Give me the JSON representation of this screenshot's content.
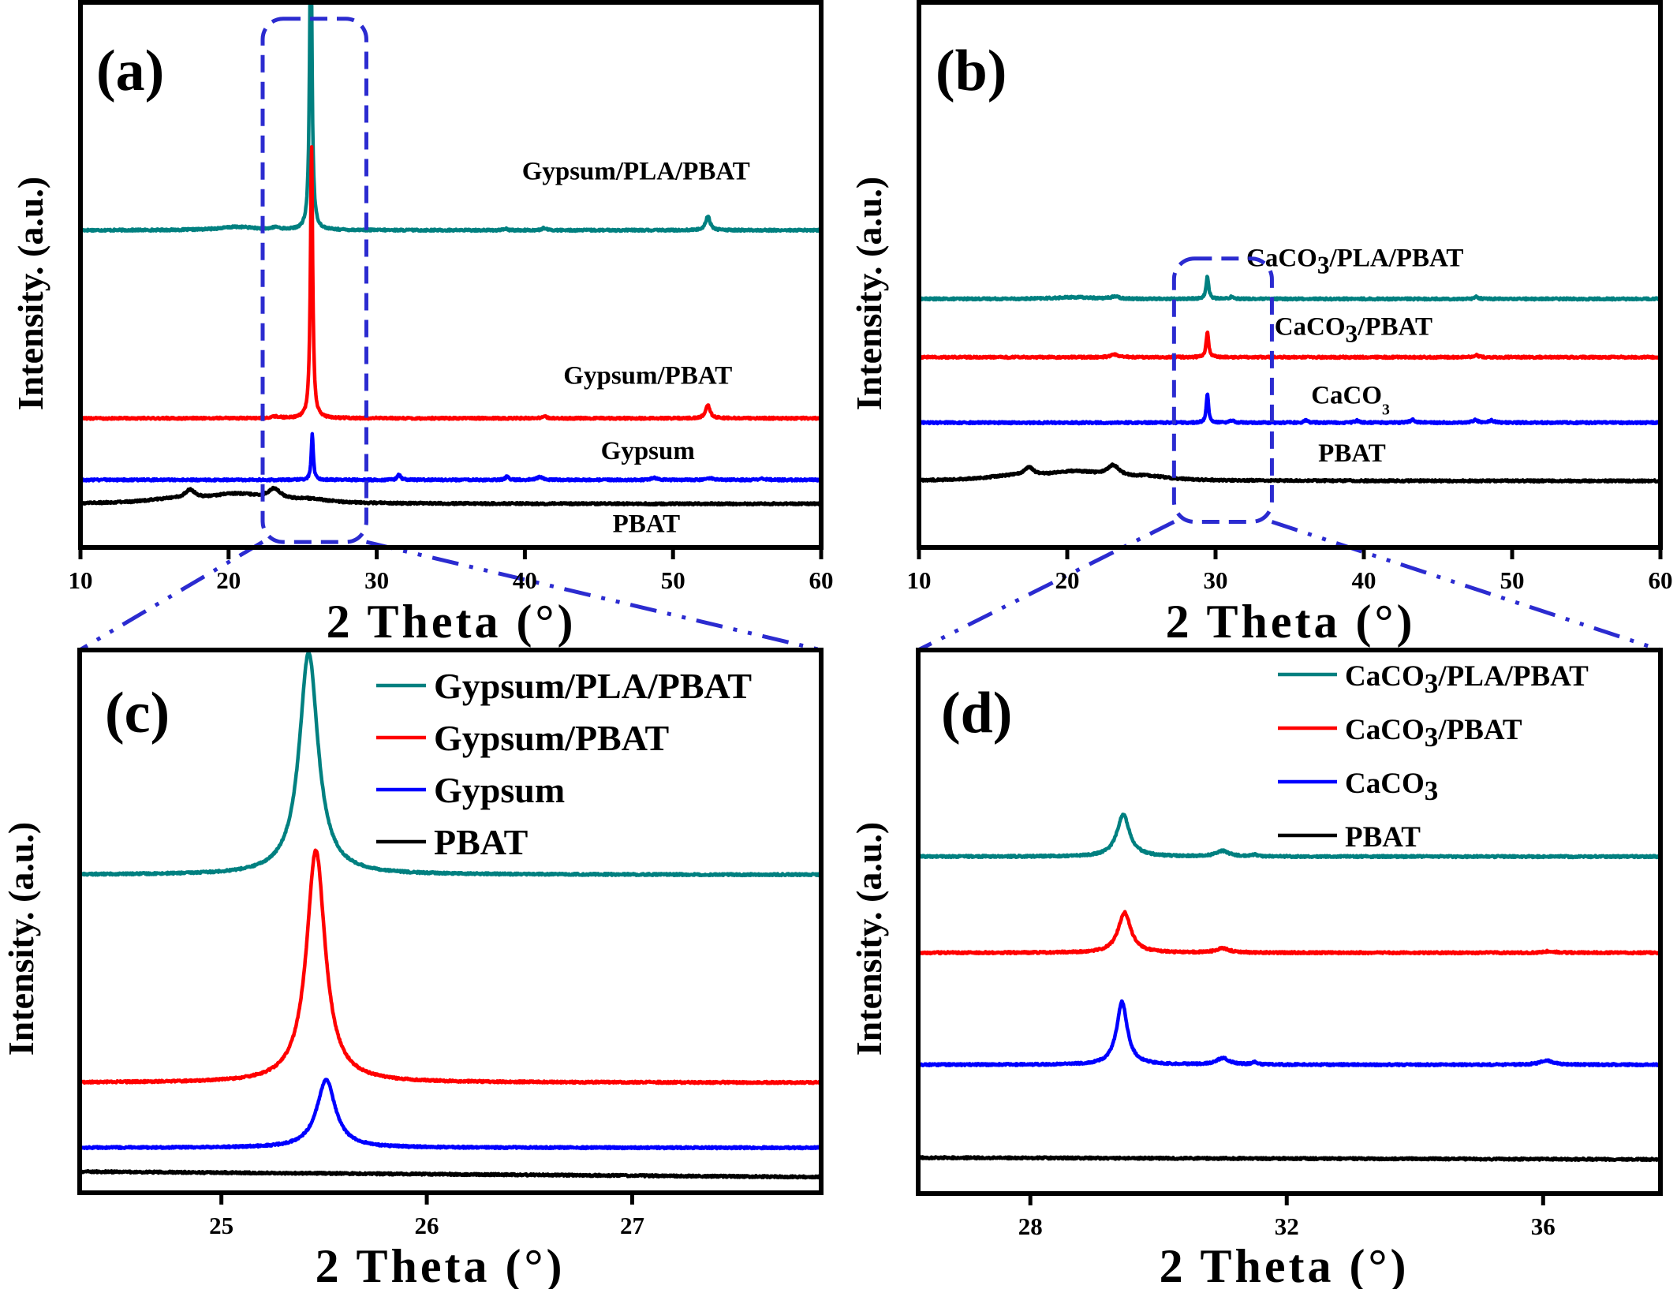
{
  "figure": {
    "ylabel": "Intensity. (a.u.)",
    "xlabel": "2 Theta (°)",
    "highlight_color": "#2b2bd0"
  },
  "colors": {
    "teal": "#008080",
    "red": "#ff0000",
    "blue": "#0000ff",
    "black": "#000000"
  },
  "chart_data": [
    {
      "id": "a",
      "type": "line",
      "tag": "(a)",
      "title": "",
      "xlabel": "2 Theta (°)",
      "ylabel": "Intensity. (a.u.)",
      "xlim": [
        10,
        60
      ],
      "ylim": [
        0,
        100
      ],
      "xticks": [
        10,
        20,
        30,
        40,
        50,
        60
      ],
      "grid": false,
      "legend": "inline-labels",
      "highlight_box": {
        "xrange": [
          22.3,
          29.3
        ],
        "yrange": [
          1,
          97
        ],
        "zoomed_in": "c"
      },
      "series": [
        {
          "name": "Gypsum/PLA/PBAT",
          "color": "teal",
          "offset": 58.2,
          "label_pos": {
            "x": 47.5,
            "y": 67.5
          },
          "peaks": [
            {
              "x": 25.55,
              "h": 60,
              "w": 0.09
            },
            {
              "x": 20.6,
              "h": 0.6,
              "w": 1.5
            },
            {
              "x": 52.35,
              "h": 2.6,
              "w": 0.18
            },
            {
              "x": 41.3,
              "h": 0.4,
              "w": 0.15
            },
            {
              "x": 38.7,
              "h": 0.3,
              "w": 0.1
            },
            {
              "x": 23.2,
              "h": 0.4,
              "w": 0.3
            }
          ]
        },
        {
          "name": "Gypsum/PBAT",
          "color": "red",
          "offset": 23.7,
          "label_pos": {
            "x": 48.3,
            "y": 30
          },
          "peaks": [
            {
              "x": 25.6,
              "h": 50,
              "w": 0.09
            },
            {
              "x": 52.35,
              "h": 2.4,
              "w": 0.18
            },
            {
              "x": 41.3,
              "h": 0.5,
              "w": 0.15
            },
            {
              "x": 23.2,
              "h": 0.3,
              "w": 0.3
            }
          ]
        },
        {
          "name": "Gypsum",
          "color": "blue",
          "offset": 12.4,
          "label_pos": {
            "x": 48.3,
            "y": 16.2
          },
          "peaks": [
            {
              "x": 25.65,
              "h": 8.5,
              "w": 0.08
            },
            {
              "x": 31.5,
              "h": 1.0,
              "w": 0.12
            },
            {
              "x": 38.8,
              "h": 0.7,
              "w": 0.12
            },
            {
              "x": 41.0,
              "h": 0.6,
              "w": 0.2
            },
            {
              "x": 48.7,
              "h": 0.4,
              "w": 0.2
            },
            {
              "x": 52.5,
              "h": 0.3,
              "w": 0.2
            },
            {
              "x": 56.0,
              "h": 0.3,
              "w": 0.2
            }
          ]
        },
        {
          "name": "PBAT",
          "color": "black",
          "offset": 8.0,
          "label_pos": {
            "x": 48.2,
            "y": 2.8
          },
          "peaks": [
            {
              "x": 17.4,
              "h": 1.6,
              "w": 0.4
            },
            {
              "x": 20.5,
              "h": 1.7,
              "w": 2.4
            },
            {
              "x": 23.1,
              "h": 1.9,
              "w": 0.5
            },
            {
              "x": 16.0,
              "h": 0.6,
              "w": 2.0
            },
            {
              "x": 25.5,
              "h": 0.6,
              "w": 1.5
            }
          ]
        }
      ]
    },
    {
      "id": "b",
      "type": "line",
      "tag": "(b)",
      "title": "",
      "xlabel": "2 Theta (°)",
      "ylabel": "Intensity. (a.u.)",
      "xlim": [
        10,
        60
      ],
      "ylim": [
        0,
        100
      ],
      "xticks": [
        10,
        20,
        30,
        40,
        50,
        60
      ],
      "grid": false,
      "legend": "inline-labels",
      "highlight_box": {
        "xrange": [
          27.2,
          33.8
        ],
        "yrange": [
          4.7,
          53.0
        ],
        "zoomed_in": "d"
      },
      "series": [
        {
          "name": "CaCO3/PLA/PBAT",
          "color": "teal",
          "offset": 45.6,
          "label_pos": {
            "x": 39.4,
            "y": 51.6
          },
          "peaks": [
            {
              "x": 29.45,
              "h": 4.2,
              "w": 0.1
            },
            {
              "x": 31.1,
              "h": 0.4,
              "w": 0.15
            },
            {
              "x": 23.2,
              "h": 0.4,
              "w": 0.3
            },
            {
              "x": 20.5,
              "h": 0.3,
              "w": 1.5
            },
            {
              "x": 47.6,
              "h": 0.4,
              "w": 0.15
            }
          ]
        },
        {
          "name": "CaCO3/PBAT",
          "color": "red",
          "offset": 34.9,
          "label_pos": {
            "x": 39.3,
            "y": 39.0
          },
          "peaks": [
            {
              "x": 29.45,
              "h": 4.6,
              "w": 0.1
            },
            {
              "x": 23.2,
              "h": 0.5,
              "w": 0.3
            },
            {
              "x": 47.6,
              "h": 0.4,
              "w": 0.15
            }
          ]
        },
        {
          "name": "CaCO3",
          "color": "blue",
          "offset": 22.9,
          "label_pos": {
            "x": 39.1,
            "y": 26.4
          },
          "peaks": [
            {
              "x": 29.45,
              "h": 5.4,
              "w": 0.09
            },
            {
              "x": 31.1,
              "h": 0.4,
              "w": 0.15
            },
            {
              "x": 36.1,
              "h": 0.4,
              "w": 0.15
            },
            {
              "x": 39.5,
              "h": 0.4,
              "w": 0.15
            },
            {
              "x": 43.3,
              "h": 0.5,
              "w": 0.2
            },
            {
              "x": 47.5,
              "h": 0.5,
              "w": 0.2
            },
            {
              "x": 48.6,
              "h": 0.4,
              "w": 0.2
            }
          ]
        },
        {
          "name": "PBAT",
          "color": "black",
          "offset": 12.2,
          "label_pos": {
            "x": 39.2,
            "y": 15.8
          },
          "peaks": [
            {
              "x": 17.4,
              "h": 1.5,
              "w": 0.4
            },
            {
              "x": 20.5,
              "h": 1.6,
              "w": 2.4
            },
            {
              "x": 23.1,
              "h": 2.0,
              "w": 0.5
            },
            {
              "x": 16.0,
              "h": 0.6,
              "w": 2.0
            },
            {
              "x": 25.5,
              "h": 0.6,
              "w": 1.5
            }
          ]
        }
      ]
    },
    {
      "id": "c",
      "type": "line",
      "tag": "(c)",
      "title": "",
      "xlabel": "2 Theta (°)",
      "ylabel": "Intensity. (a.u.)",
      "xlim": [
        24.31,
        27.92
      ],
      "ylim": [
        0,
        100
      ],
      "xticks": [
        25,
        26,
        27
      ],
      "grid": false,
      "legend": "top-right",
      "series": [
        {
          "name": "Gypsum/PLA/PBAT",
          "color": "teal",
          "offset": 58.6,
          "peaks": [
            {
              "x": 25.425,
              "h": 41.0,
              "w": 0.055
            }
          ]
        },
        {
          "name": "Gypsum/PBAT",
          "color": "red",
          "offset": 20.3,
          "peaks": [
            {
              "x": 25.46,
              "h": 42.8,
              "w": 0.055
            }
          ]
        },
        {
          "name": "Gypsum",
          "color": "blue",
          "offset": 8.3,
          "peaks": [
            {
              "x": 25.51,
              "h": 12.5,
              "w": 0.055
            }
          ]
        },
        {
          "name": "PBAT",
          "color": "black",
          "offset": 3.9,
          "slope": -0.25,
          "peaks": []
        }
      ]
    },
    {
      "id": "d",
      "type": "line",
      "tag": "(d)",
      "title": "",
      "xlabel": "2 Theta (°)",
      "ylabel": "Intensity. (a.u.)",
      "xlim": [
        26.25,
        37.83
      ],
      "ylim": [
        0,
        100
      ],
      "xticks": [
        28,
        32,
        36
      ],
      "grid": false,
      "legend": "top-right",
      "series": [
        {
          "name": "CaCO3/PLA/PBAT",
          "color": "teal",
          "offset": 62.0,
          "peaks": [
            {
              "x": 29.45,
              "h": 7.7,
              "w": 0.12
            },
            {
              "x": 31.0,
              "h": 1.0,
              "w": 0.12
            },
            {
              "x": 31.5,
              "h": 0.3,
              "w": 0.05
            }
          ]
        },
        {
          "name": "CaCO3/PBAT",
          "color": "red",
          "offset": 44.3,
          "peaks": [
            {
              "x": 29.47,
              "h": 7.4,
              "w": 0.12
            },
            {
              "x": 31.0,
              "h": 0.8,
              "w": 0.12
            },
            {
              "x": 36.1,
              "h": 0.3,
              "w": 0.1
            }
          ]
        },
        {
          "name": "CaCO3",
          "color": "blue",
          "offset": 23.7,
          "peaks": [
            {
              "x": 29.43,
              "h": 11.6,
              "w": 0.1
            },
            {
              "x": 31.0,
              "h": 1.2,
              "w": 0.12
            },
            {
              "x": 31.5,
              "h": 0.4,
              "w": 0.05
            },
            {
              "x": 36.05,
              "h": 0.8,
              "w": 0.12
            }
          ]
        },
        {
          "name": "PBAT",
          "color": "black",
          "offset": 6.6,
          "slope": -0.08,
          "peaks": []
        }
      ]
    }
  ]
}
